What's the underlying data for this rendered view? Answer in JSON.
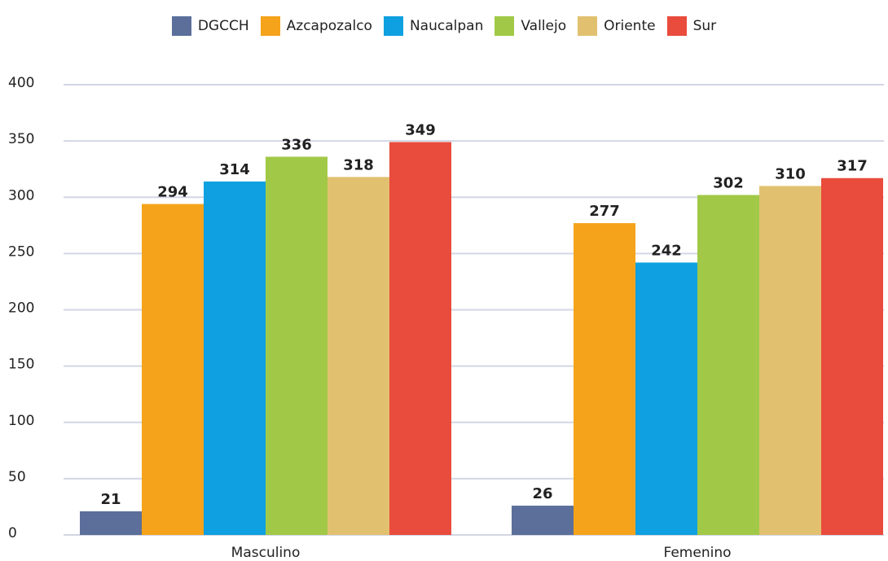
{
  "chart_data": {
    "type": "bar",
    "categories": [
      "Masculino",
      "Femenino"
    ],
    "series": [
      {
        "name": "DGCCH",
        "color": "#5b6f9a",
        "values": [
          21,
          26
        ]
      },
      {
        "name": "Azcapozalco",
        "color": "#f5a31a",
        "values": [
          294,
          277
        ]
      },
      {
        "name": "Naucalpan",
        "color": "#0ea0e0",
        "values": [
          314,
          242
        ]
      },
      {
        "name": "Vallejo",
        "color": "#a1c947",
        "values": [
          336,
          302
        ]
      },
      {
        "name": "Oriente",
        "color": "#e1c170",
        "values": [
          318,
          310
        ]
      },
      {
        "name": "Sur",
        "color": "#e94b3c",
        "values": [
          349,
          317
        ]
      }
    ],
    "ylim": [
      0,
      400
    ],
    "yticks": [
      0,
      50,
      100,
      150,
      200,
      250,
      300,
      350,
      400
    ],
    "grid": true,
    "legend": "top"
  }
}
